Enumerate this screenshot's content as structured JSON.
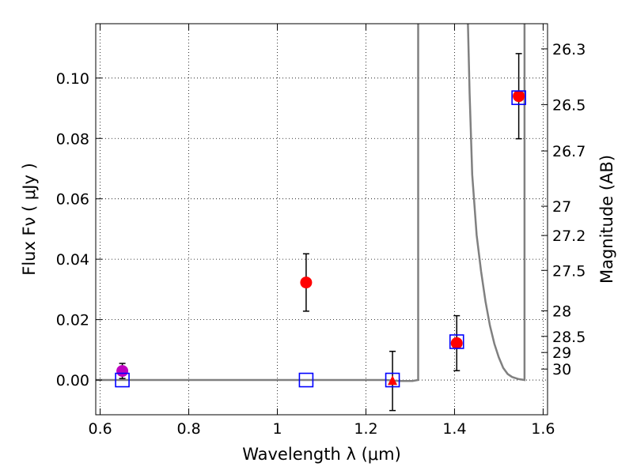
{
  "chart_data": {
    "type": "scatter",
    "xlabel": "Wavelength  λ (μm)",
    "ylabel": "Flux  Fν ( μJy )",
    "y2label": "Magnitude (AB)",
    "xlim": [
      0.59,
      1.61
    ],
    "ylim": [
      -0.0115,
      0.118
    ],
    "grid": true,
    "x_ticks": [
      {
        "value": 0.6,
        "label": "0.6"
      },
      {
        "value": 0.8,
        "label": "0.8"
      },
      {
        "value": 1.0,
        "label": "1"
      },
      {
        "value": 1.2,
        "label": "1.2"
      },
      {
        "value": 1.4,
        "label": "1.4"
      },
      {
        "value": 1.6,
        "label": "1.6"
      }
    ],
    "y_ticks": [
      {
        "value": 0.0,
        "label": "0.00"
      },
      {
        "value": 0.02,
        "label": "0.02"
      },
      {
        "value": 0.04,
        "label": "0.04"
      },
      {
        "value": 0.06,
        "label": "0.06"
      },
      {
        "value": 0.08,
        "label": "0.08"
      },
      {
        "value": 0.1,
        "label": "0.10"
      }
    ],
    "mag_ticks": [
      {
        "value": 26.3,
        "label": "26.3"
      },
      {
        "value": 26.5,
        "label": "26.5"
      },
      {
        "value": 26.7,
        "label": "26.7"
      },
      {
        "value": 27.0,
        "label": "27"
      },
      {
        "value": 27.2,
        "label": "27.2"
      },
      {
        "value": 27.5,
        "label": "27.5"
      },
      {
        "value": 28.0,
        "label": "28"
      },
      {
        "value": 28.5,
        "label": "28.5"
      },
      {
        "value": 29.0,
        "label": "29"
      },
      {
        "value": 30.0,
        "label": "30"
      }
    ],
    "series": [
      {
        "marker": "circle",
        "color": "#ff0000",
        "points": [
          {
            "x": 1.065,
            "y": 0.0323,
            "err": 0.0095
          },
          {
            "x": 1.405,
            "y": 0.0122,
            "err": 0.0091
          },
          {
            "x": 1.545,
            "y": 0.094,
            "err": 0.0141
          }
        ]
      },
      {
        "marker": "circle",
        "color": "#bf00bf",
        "points": [
          {
            "x": 0.65,
            "y": 0.003,
            "err": 0.0025
          }
        ]
      },
      {
        "marker": "triangle",
        "color": "#ff0000",
        "points": [
          {
            "x": 1.26,
            "y": -0.0003,
            "err": 0.0098
          }
        ]
      },
      {
        "marker": "square-open",
        "color": "#0000ff",
        "points": [
          {
            "x": 0.65,
            "y": 0.0
          },
          {
            "x": 1.065,
            "y": 0.0
          },
          {
            "x": 1.26,
            "y": 0.0
          },
          {
            "x": 1.405,
            "y": 0.0127
          },
          {
            "x": 1.545,
            "y": 0.0935
          }
        ]
      }
    ],
    "model_curve": {
      "color": "#808080",
      "points": [
        [
          0.59,
          0.0
        ],
        [
          1.245,
          0.0
        ],
        [
          1.275,
          -0.0003
        ],
        [
          1.305,
          -0.0003
        ],
        [
          1.318,
          0.0
        ],
        [
          1.318,
          0.12
        ],
        [
          1.43,
          0.12
        ],
        [
          1.434,
          0.095
        ],
        [
          1.44,
          0.068
        ],
        [
          1.45,
          0.048
        ],
        [
          1.46,
          0.036
        ],
        [
          1.47,
          0.026
        ],
        [
          1.48,
          0.018
        ],
        [
          1.49,
          0.012
        ],
        [
          1.5,
          0.0075
        ],
        [
          1.51,
          0.004
        ],
        [
          1.52,
          0.002
        ],
        [
          1.53,
          0.001
        ],
        [
          1.545,
          0.0003
        ],
        [
          1.558,
          0.0
        ],
        [
          1.558,
          0.12
        ]
      ]
    }
  }
}
